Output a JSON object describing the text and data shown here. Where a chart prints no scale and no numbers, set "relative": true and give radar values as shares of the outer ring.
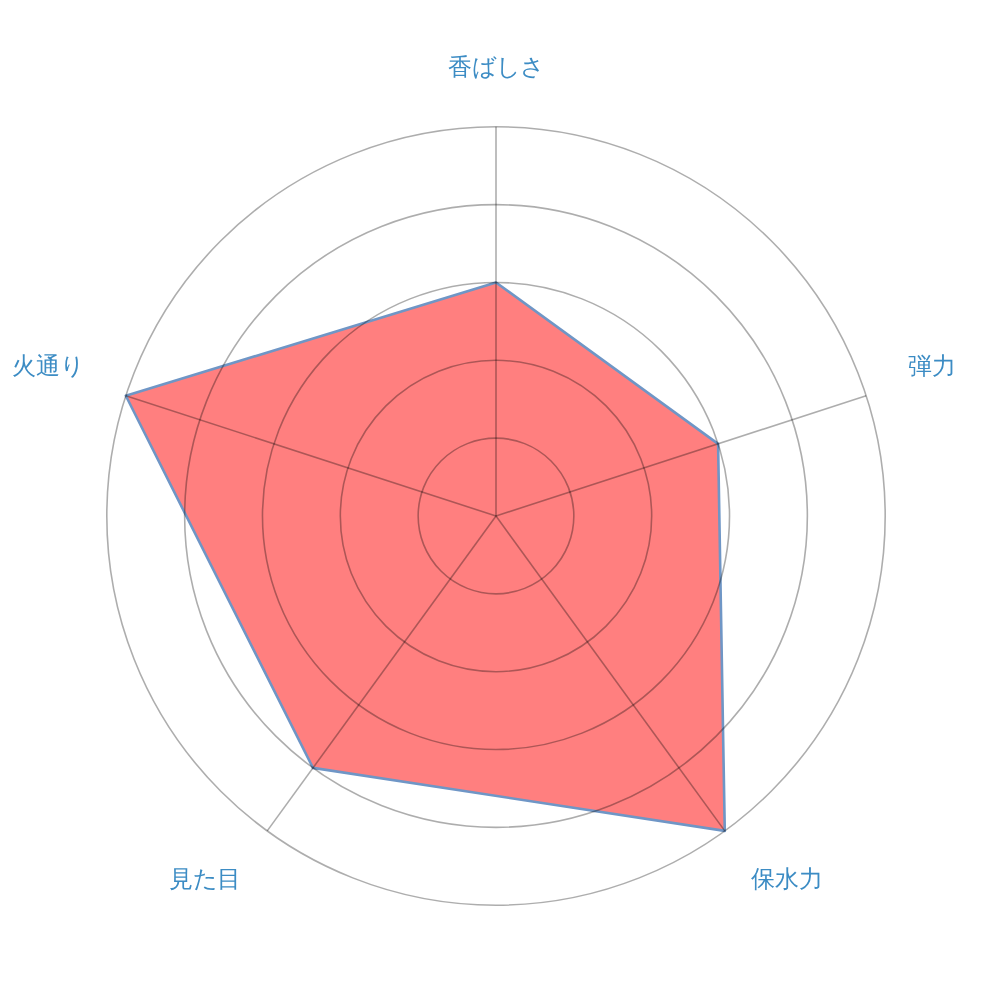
{
  "chart_data": {
    "type": "radar",
    "categories": [
      "香ばしさ",
      "弾力",
      "保水力",
      "見た目",
      "火通り"
    ],
    "series": [
      {
        "color": "#ff7f7f",
        "values": [
          0.6,
          0.6,
          1,
          0.8,
          1
        ]
      }
    ],
    "relative": true,
    "grid": true,
    "legend": false,
    "marker": "none"
  }
}
